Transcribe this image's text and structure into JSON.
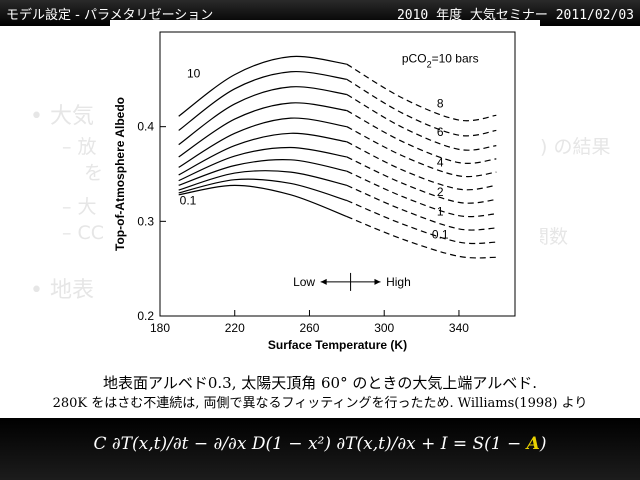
{
  "header": {
    "title": "モデル設定 - パラメタリゼーション",
    "right": "2010 年度 大気セミナー 2011/02/03"
  },
  "background_text": {
    "b1": "• 大気",
    "b2": "– 放",
    "b2r": ") の結果",
    "b3": "を",
    "b4": "– 大",
    "b5": "– CC",
    "b5r": "関数",
    "b6": "• 地表"
  },
  "chart_data": {
    "type": "line",
    "xlabel": "Surface Temperature (K)",
    "ylabel": "Top-of-Atmosphere Albedo",
    "xlim": [
      180,
      370
    ],
    "ylim": [
      0.2,
      0.5
    ],
    "x_ticks": [
      180,
      220,
      260,
      300,
      340
    ],
    "y_ticks": [
      0.2,
      0.3,
      0.4
    ],
    "legend_top": "pCO",
    "legend_sub": "2",
    "legend_rest": "=10 bars",
    "low_label": "Low",
    "high_label": "High",
    "series": [
      {
        "name": "10",
        "values": [
          [
            190,
            0.411
          ],
          [
            220,
            0.455
          ],
          [
            250,
            0.474
          ],
          [
            280,
            0.466
          ],
          [
            310,
            0.43
          ],
          [
            340,
            0.407
          ],
          [
            360,
            0.412
          ]
        ]
      },
      {
        "name": "8",
        "values": [
          [
            190,
            0.396
          ],
          [
            220,
            0.44
          ],
          [
            250,
            0.458
          ],
          [
            280,
            0.45
          ],
          [
            310,
            0.414
          ],
          [
            340,
            0.391
          ],
          [
            360,
            0.396
          ]
        ]
      },
      {
        "name": "",
        "values": [
          [
            190,
            0.381
          ],
          [
            220,
            0.424
          ],
          [
            250,
            0.442
          ],
          [
            280,
            0.434
          ],
          [
            310,
            0.399
          ],
          [
            340,
            0.376
          ],
          [
            360,
            0.38
          ]
        ]
      },
      {
        "name": "6",
        "values": [
          [
            190,
            0.368
          ],
          [
            220,
            0.408
          ],
          [
            250,
            0.425
          ],
          [
            280,
            0.417
          ],
          [
            310,
            0.384
          ],
          [
            340,
            0.362
          ],
          [
            360,
            0.366
          ]
        ]
      },
      {
        "name": "",
        "values": [
          [
            190,
            0.357
          ],
          [
            220,
            0.393
          ],
          [
            250,
            0.409
          ],
          [
            280,
            0.4
          ],
          [
            310,
            0.369
          ],
          [
            340,
            0.348
          ],
          [
            360,
            0.352
          ]
        ]
      },
      {
        "name": "4",
        "values": [
          [
            190,
            0.349
          ],
          [
            220,
            0.38
          ],
          [
            250,
            0.393
          ],
          [
            280,
            0.384
          ],
          [
            310,
            0.354
          ],
          [
            340,
            0.334
          ],
          [
            360,
            0.338
          ]
        ]
      },
      {
        "name": "",
        "values": [
          [
            190,
            0.343
          ],
          [
            220,
            0.369
          ],
          [
            250,
            0.378
          ],
          [
            280,
            0.368
          ],
          [
            310,
            0.34
          ],
          [
            340,
            0.32
          ],
          [
            360,
            0.323
          ]
        ]
      },
      {
        "name": "2",
        "values": [
          [
            190,
            0.338
          ],
          [
            220,
            0.359
          ],
          [
            250,
            0.365
          ],
          [
            280,
            0.353
          ],
          [
            310,
            0.326
          ],
          [
            340,
            0.306
          ],
          [
            360,
            0.308
          ]
        ]
      },
      {
        "name": "",
        "values": [
          [
            190,
            0.333
          ],
          [
            220,
            0.351
          ],
          [
            250,
            0.352
          ],
          [
            280,
            0.338
          ],
          [
            310,
            0.312
          ],
          [
            340,
            0.292
          ],
          [
            360,
            0.293
          ]
        ]
      },
      {
        "name": "1",
        "values": [
          [
            190,
            0.33
          ],
          [
            220,
            0.344
          ],
          [
            250,
            0.34
          ],
          [
            280,
            0.322
          ],
          [
            310,
            0.297
          ],
          [
            340,
            0.278
          ],
          [
            360,
            0.278
          ]
        ]
      },
      {
        "name": "0.1",
        "values": [
          [
            190,
            0.328
          ],
          [
            220,
            0.338
          ],
          [
            250,
            0.328
          ],
          [
            280,
            0.305
          ],
          [
            310,
            0.281
          ],
          [
            340,
            0.263
          ],
          [
            360,
            0.262
          ]
        ]
      }
    ],
    "inline_labels": {
      "left_top": "10",
      "left_bottom": "0.1",
      "right": [
        "8",
        "6",
        "4",
        "2",
        "1",
        "0.1"
      ]
    }
  },
  "caption": {
    "line1": "地表面アルベド0.3, 太陽天頂角 60° のときの大気上端アルベド.",
    "line2": "280K をはさむ不連続は, 両側で異なるフィッティングを行ったため. Williams(1998) より"
  },
  "equation": {
    "lhs": "C ∂T(x,t)/∂t − ∂/∂x D(1 − x²) ∂T(x,t)/∂x + I = S(1 − ",
    "highlight": "A",
    "end": ")"
  }
}
